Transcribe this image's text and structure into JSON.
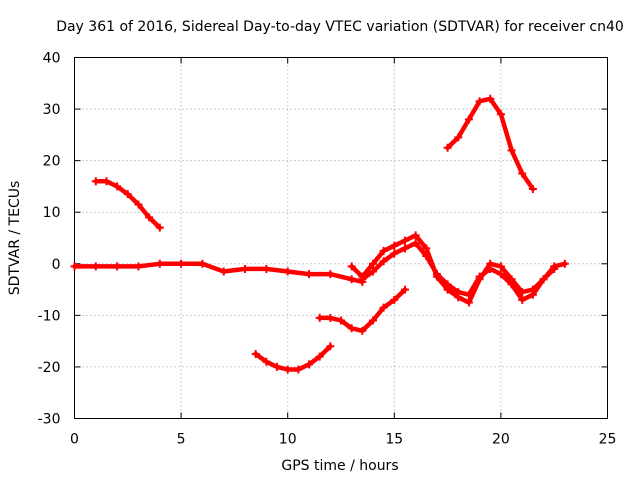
{
  "chart_data": {
    "type": "line",
    "title": "Day 361 of 2016, Sidereal Day-to-day VTEC variation (SDTVAR) for receiver cn40",
    "xlabel": "GPS time / hours",
    "ylabel": "SDTVAR / TECUs",
    "xlim": [
      0,
      25
    ],
    "ylim": [
      -30,
      40
    ],
    "xticks": [
      0,
      5,
      10,
      15,
      20,
      25
    ],
    "yticks": [
      -30,
      -20,
      -10,
      0,
      10,
      20,
      30,
      40
    ],
    "grid": true,
    "legend": "none",
    "color": "#ff0000",
    "series": [
      {
        "name": "trace-1",
        "x": [
          1.0,
          1.5,
          2.0,
          2.5,
          3.0,
          3.5,
          4.0
        ],
        "y": [
          16.0,
          16.0,
          15.0,
          13.5,
          11.5,
          9.0,
          7.0
        ]
      },
      {
        "name": "trace-2",
        "x": [
          0,
          1,
          2,
          3,
          4,
          5,
          6,
          7,
          8,
          9,
          10,
          11,
          12,
          13,
          13.5
        ],
        "y": [
          -0.5,
          -0.5,
          -0.5,
          -0.5,
          0,
          0,
          0,
          -1.5,
          -1,
          -1,
          -1.5,
          -2,
          -2,
          -3,
          -3.5
        ]
      },
      {
        "name": "trace-3",
        "x": [
          13.0,
          13.5,
          14.0,
          14.5,
          15.0,
          15.5,
          16.0,
          16.5,
          17.0,
          17.5,
          18.0,
          18.5,
          19.0,
          19.5,
          20.0,
          20.5,
          21.0,
          21.5,
          22.0,
          22.5,
          23.0
        ],
        "y": [
          -0.5,
          -2.5,
          0,
          2.5,
          3.5,
          4.5,
          5.5,
          3.0,
          -2.5,
          -5.0,
          -6.5,
          -7.5,
          -3.0,
          0,
          -0.5,
          -3.0,
          -5.5,
          -5.0,
          -3.0,
          -0.5,
          0
        ]
      },
      {
        "name": "trace-4",
        "x": [
          13.5,
          14.0,
          14.5,
          15.0,
          15.5,
          16.0,
          16.5,
          17.0,
          17.5,
          18.0,
          18.5,
          19.0,
          19.5,
          20.0,
          20.5,
          21.0,
          21.5,
          22.0,
          22.5
        ],
        "y": [
          -3.0,
          -1.5,
          0.5,
          2.0,
          3.0,
          4.0,
          1.5,
          -2.0,
          -4.0,
          -5.5,
          -6.0,
          -2.5,
          -1.0,
          -2.0,
          -4.0,
          -7.0,
          -6.0,
          -3.0,
          -1.0
        ]
      },
      {
        "name": "trace-5",
        "x": [
          8.5,
          9.0,
          9.5,
          10.0,
          10.5,
          11.0,
          11.5,
          12.0
        ],
        "y": [
          -17.5,
          -19.0,
          -20.0,
          -20.5,
          -20.5,
          -19.5,
          -18.0,
          -16.0
        ]
      },
      {
        "name": "trace-6",
        "x": [
          11.5,
          12.0,
          12.5,
          13.0,
          13.5,
          14.0,
          14.5,
          15.0,
          15.5
        ],
        "y": [
          -10.5,
          -10.5,
          -11.0,
          -12.5,
          -13.0,
          -11.0,
          -8.5,
          -7.0,
          -5.0
        ]
      },
      {
        "name": "trace-7",
        "x": [
          17.5,
          18.0,
          18.5,
          19.0,
          19.5,
          20.0,
          20.5,
          21.0,
          21.5
        ],
        "y": [
          22.5,
          24.5,
          28.0,
          31.5,
          32.0,
          29.0,
          22.0,
          17.5,
          14.5
        ]
      }
    ]
  }
}
